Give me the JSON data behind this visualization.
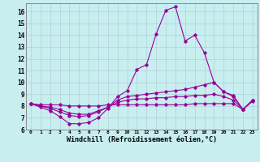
{
  "xlabel": "Windchill (Refroidissement éolien,°C)",
  "background_color": "#c8eef0",
  "grid_color": "#b0d0d8",
  "line_color": "#990099",
  "xlim": [
    -0.5,
    23.5
  ],
  "ylim": [
    6,
    16.7
  ],
  "xticks": [
    0,
    1,
    2,
    3,
    4,
    5,
    6,
    7,
    8,
    9,
    10,
    11,
    12,
    13,
    14,
    15,
    16,
    17,
    18,
    19,
    20,
    21,
    22,
    23
  ],
  "yticks": [
    6,
    7,
    8,
    9,
    10,
    11,
    12,
    13,
    14,
    15,
    16
  ],
  "line1": [
    8.2,
    7.9,
    7.6,
    7.1,
    6.5,
    6.5,
    6.6,
    7.0,
    7.8,
    8.8,
    9.3,
    11.1,
    11.5,
    14.1,
    16.1,
    16.4,
    13.5,
    14.0,
    12.5,
    10.0,
    9.2,
    8.8,
    7.7,
    8.5
  ],
  "line2": [
    8.2,
    8.0,
    7.8,
    7.5,
    7.2,
    7.1,
    7.2,
    7.5,
    7.9,
    8.5,
    8.8,
    8.9,
    9.0,
    9.1,
    9.2,
    9.3,
    9.4,
    9.6,
    9.8,
    10.0,
    9.2,
    8.9,
    7.7,
    8.5
  ],
  "line3": [
    8.2,
    8.0,
    7.9,
    7.7,
    7.4,
    7.3,
    7.3,
    7.6,
    7.9,
    8.3,
    8.5,
    8.6,
    8.6,
    8.7,
    8.7,
    8.8,
    8.8,
    8.9,
    8.9,
    9.0,
    8.8,
    8.5,
    7.7,
    8.5
  ],
  "line4": [
    8.2,
    8.1,
    8.1,
    8.1,
    8.0,
    8.0,
    8.0,
    8.0,
    8.1,
    8.1,
    8.1,
    8.1,
    8.1,
    8.1,
    8.1,
    8.1,
    8.1,
    8.2,
    8.2,
    8.2,
    8.2,
    8.2,
    7.7,
    8.4
  ]
}
